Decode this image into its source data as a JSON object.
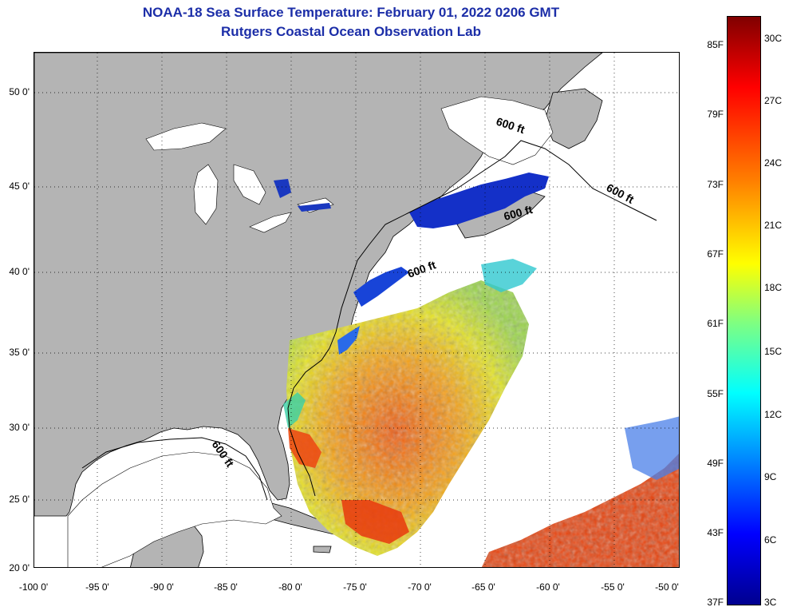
{
  "title": "NOAA-18 Sea Surface Temperature:  February 01, 2022 0206 GMT",
  "subtitle": "Rutgers Coastal Ocean Observation Lab",
  "map": {
    "lat_labels": [
      "50 0'",
      "45 0'",
      "40 0'",
      "35 0'",
      "30 0'",
      "25 0'",
      "20 0'"
    ],
    "lon_labels": [
      "-100 0'",
      "-95 0'",
      "-90 0'",
      "-85 0'",
      "-80 0'",
      "-75 0'",
      "-70 0'",
      "-65 0'",
      "-60 0'",
      "-55 0'",
      "-50 0'"
    ],
    "contour_labels": [
      "600 ft",
      "600 ft",
      "600 ft",
      "600 ft",
      "600 ft"
    ],
    "colors": {
      "land": "#b4b4b4",
      "cloud": "#ffffff",
      "title": "#1c2ea8",
      "colorbar_cold": "#00008f",
      "colorbar_warm": "#800000"
    }
  },
  "colorbar": {
    "fahrenheit_labels": [
      "85F",
      "79F",
      "73F",
      "67F",
      "61F",
      "55F",
      "49F",
      "43F",
      "37F"
    ],
    "celsius_labels": [
      "30C",
      "27C",
      "24C",
      "21C",
      "18C",
      "15C",
      "12C",
      "9C",
      "6C",
      "3C"
    ]
  }
}
